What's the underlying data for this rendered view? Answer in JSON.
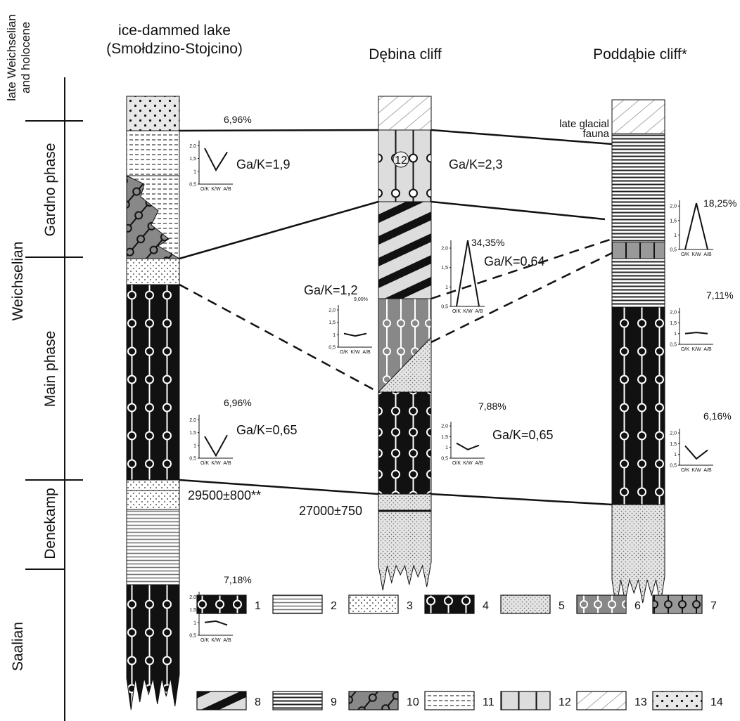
{
  "time_scale": {
    "stages": [
      {
        "label": [
          "late Weichselian",
          "and holocene"
        ]
      },
      {
        "label": "Gardno phase"
      },
      {
        "label": "Weichselian"
      },
      {
        "label": "Main phase"
      },
      {
        "label": "Denekamp"
      },
      {
        "label": "Saalian"
      }
    ]
  },
  "columns": [
    {
      "title": [
        "ice-dammed lake",
        "(Smołdzino-Stojcino)"
      ]
    },
    {
      "title": "Dębina cliff"
    },
    {
      "title": "Poddąbie cliff*"
    }
  ],
  "annotations": {
    "fauna": [
      "late glacial",
      "fauna"
    ],
    "layer_number": "12",
    "ratios": [
      "Ga/K=1,9",
      "Ga/K=2,3",
      "Ga/K=1,2",
      "Ga/K=0,64",
      "Ga/K=0,65",
      "Ga/K=0,65"
    ],
    "dates": [
      "29500±800**",
      "27000±750"
    ]
  },
  "mini_chart_axis": {
    "ylim": [
      0.5,
      2.2
    ],
    "yticks": [
      {
        "value": 2,
        "label": "2,0"
      },
      {
        "value": 1.5,
        "label": "1,5"
      },
      1,
      {
        "value": 0.5,
        "label": "0,5"
      }
    ],
    "categories": [
      "O/K",
      "K/W",
      "A/B"
    ]
  },
  "mini_charts": [
    {
      "type": "line",
      "label": "6,96%",
      "values": [
        1.9,
        1.05,
        1.75
      ]
    },
    {
      "type": "line",
      "label": "6,96%",
      "values": [
        1.35,
        0.6,
        1.4
      ]
    },
    {
      "type": "line",
      "label": "7,18%",
      "values": [
        1.0,
        1.05,
        0.9
      ]
    },
    {
      "type": "line",
      "label": "9,00%",
      "values": [
        1.05,
        0.95,
        1.05
      ]
    },
    {
      "type": "line",
      "label": "34,35%",
      "values": [
        0.5,
        2.2,
        0.5
      ]
    },
    {
      "type": "line",
      "label": "7,88%",
      "values": [
        1.2,
        0.9,
        1.1
      ]
    },
    {
      "type": "line",
      "label": "18,25%",
      "values": [
        0.5,
        2.1,
        0.5
      ]
    },
    {
      "type": "line",
      "label": "7,11%",
      "values": [
        1.0,
        1.05,
        1.0
      ]
    },
    {
      "type": "line",
      "label": "6,16%",
      "values": [
        1.4,
        0.8,
        1.2
      ]
    }
  ],
  "legend": [
    "1",
    "2",
    "3",
    "4",
    "5",
    "6",
    "7",
    "8",
    "9",
    "10",
    "11",
    "12",
    "13",
    "14"
  ]
}
